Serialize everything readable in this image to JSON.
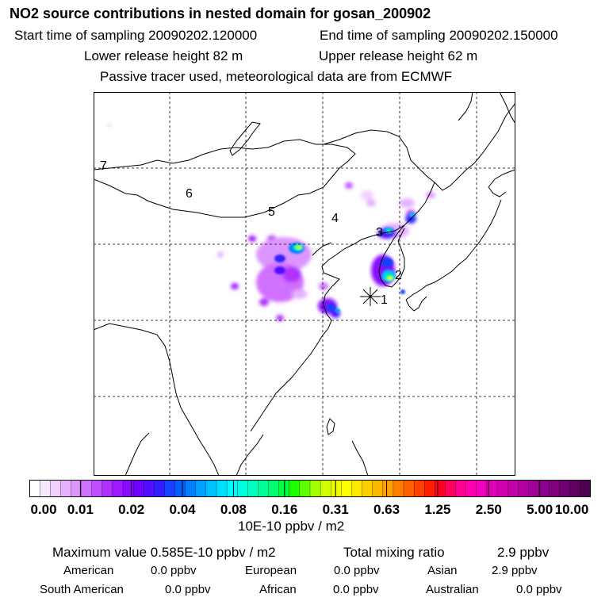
{
  "title": "NO2 source contributions in nested domain for gosan_200902",
  "sampling": {
    "start": "Start time of sampling 20090202.120000",
    "end": "End time of sampling 20090202.150000"
  },
  "release": {
    "lower": "Lower release height   82 m",
    "upper": "Upper release height   62 m"
  },
  "note": "Passive tracer used, meteorological data are from ECMWF",
  "map": {
    "station_marker": "gosan-station-marker",
    "labels": [
      "1",
      "2",
      "3",
      "4",
      "5",
      "6",
      "7"
    ],
    "colors": {
      "frame": "#000000",
      "grid": "#000000",
      "coast": "#000000"
    }
  },
  "colorbar": {
    "tick_labels": [
      "0.00",
      "0.01",
      "0.02",
      "0.04",
      "0.08",
      "0.16",
      "0.31",
      "0.63",
      "1.25",
      "2.50",
      "5.00",
      "10.00"
    ],
    "colors": [
      "#ffffff",
      "#f8e8ff",
      "#f0d0ff",
      "#e6b4ff",
      "#dc96ff",
      "#d070ff",
      "#c050ff",
      "#b030ff",
      "#a018ff",
      "#8a0aff",
      "#7000ff",
      "#5010ff",
      "#3020ff",
      "#1840ff",
      "#0060ff",
      "#0080ff",
      "#00a0ff",
      "#00c0ff",
      "#00dcff",
      "#00f8ff",
      "#00ffe0",
      "#00ffc0",
      "#00ff98",
      "#00ff70",
      "#00ff40",
      "#20ff00",
      "#60ff00",
      "#a0ff00",
      "#d0ff00",
      "#f0ff00",
      "#ffff00",
      "#ffe800",
      "#ffd000",
      "#ffb800",
      "#ffa000",
      "#ff8000",
      "#ff6000",
      "#ff4000",
      "#ff2000",
      "#ff0020",
      "#ff0060",
      "#ff0090",
      "#ff00b0",
      "#f000c0",
      "#e000b8",
      "#d000b0",
      "#c000a8",
      "#b000a0",
      "#a00098",
      "#900090",
      "#800080",
      "#700070",
      "#600060",
      "#500050"
    ],
    "units": "10E-10 ppbv / m2"
  },
  "summary": {
    "max_label": "Maximum value  0.585E-10 ppbv / m2",
    "total_label": "Total mixing ratio",
    "total_value": "2.9 ppbv",
    "regions": [
      {
        "name": "American",
        "value": "0.0 ppbv"
      },
      {
        "name": "European",
        "value": "0.0 ppbv"
      },
      {
        "name": "Asian",
        "value": "2.9 ppbv"
      },
      {
        "name": "South American",
        "value": "0.0 ppbv"
      },
      {
        "name": "African",
        "value": "0.0 ppbv"
      },
      {
        "name": "Australian",
        "value": "0.0 ppbv"
      }
    ]
  }
}
